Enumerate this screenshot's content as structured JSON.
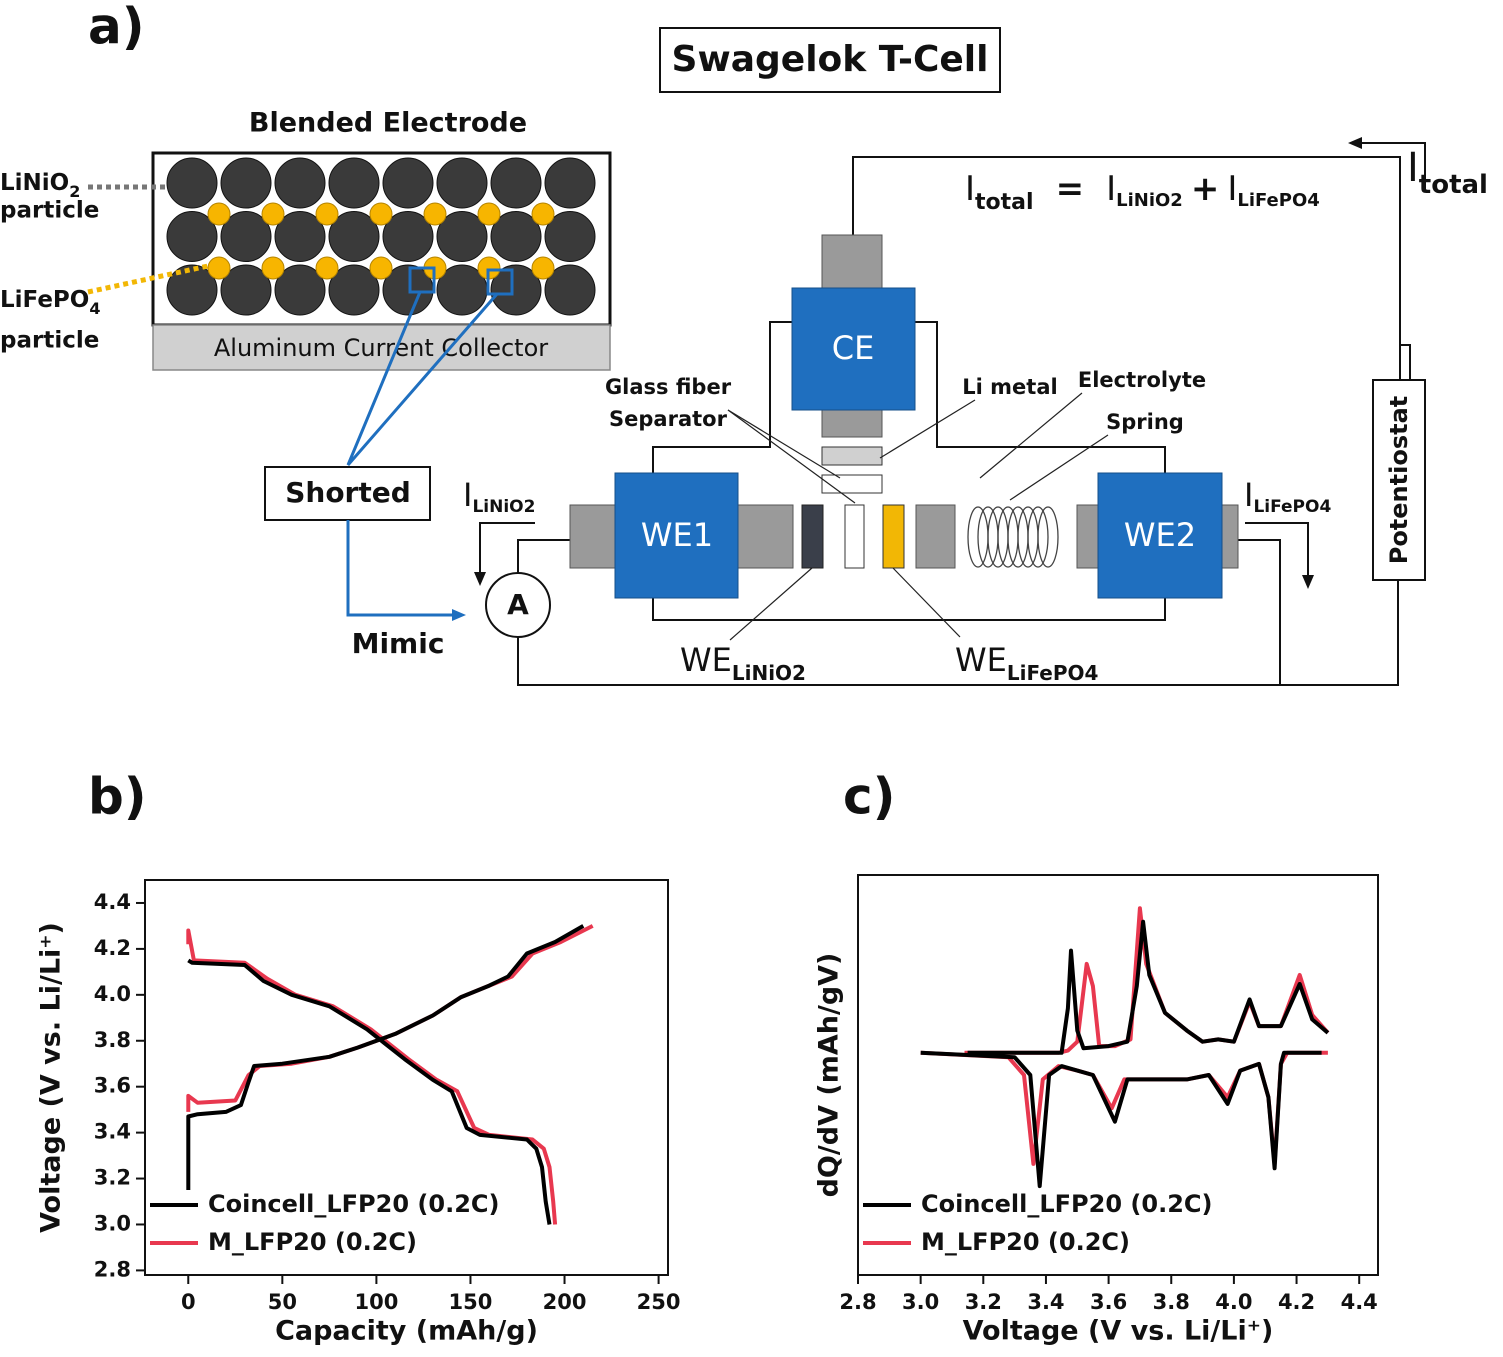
{
  "diagram": {
    "label": "a)",
    "title": "Swagelok T-Cell",
    "electrode_title": "Blended Electrode",
    "collector": "Aluminum Current Collector",
    "particle_1": {
      "name": "LiNiO",
      "sub": "2",
      "suffix": "particle"
    },
    "particle_2": {
      "name": "LiFePO",
      "sub": "4",
      "suffix": "particle"
    },
    "shorted": "Shorted",
    "mimic": "Mimic",
    "ammeter": "A",
    "ce": "CE",
    "we1": "WE1",
    "we2": "WE2",
    "potentiostat": "Potentiostat",
    "glass_fiber": [
      "Glass fiber",
      "Separator"
    ],
    "li_metal": "Li metal",
    "electrolyte": "Electrolyte",
    "spring": "Spring",
    "we_linio2": {
      "main": "WE",
      "sub": "LiNiO2"
    },
    "we_lifepo4": {
      "main": "WE",
      "sub": "LiFePO4"
    },
    "i_linio2": {
      "main": "I",
      "sub": "LiNiO2"
    },
    "i_lifepo4": {
      "main": "I",
      "sub": "LiFePO4"
    },
    "i_total": {
      "main": "I",
      "sub": "total"
    },
    "equation": {
      "lhs": {
        "main": "I",
        "sub": "total"
      },
      "eq": "=",
      "term1": {
        "main": "I",
        "sub": "LiNiO2"
      },
      "plus": "+",
      "term2": {
        "main": "I",
        "sub": "LiFePO4"
      }
    }
  },
  "chart_data": [
    {
      "type": "line",
      "label": "b)",
      "xlabel": "Capacity (mAh/g)",
      "ylabel": "Voltage (V vs. Li/Li⁺)",
      "xlim": [
        -23,
        255
      ],
      "ylim": [
        2.78,
        4.5
      ],
      "xticks": [
        0,
        50,
        100,
        150,
        200,
        250
      ],
      "yticks": [
        2.8,
        {
          "value": 3,
          "label": "3.0"
        },
        3.2,
        3.4,
        3.6,
        3.8,
        {
          "value": 4,
          "label": "4.0"
        },
        4.2,
        4.4
      ],
      "legend": "lower left",
      "series": [
        {
          "name": "M_LFP20 (0.2C)",
          "color": "#e8384f",
          "x": [
            0,
            0,
            5,
            25,
            32,
            38,
            55,
            75,
            90,
            110,
            130,
            145,
            160,
            172,
            183,
            198,
            215,
            null,
            0,
            0,
            3,
            30,
            42,
            57,
            77,
            97,
            117,
            132,
            143,
            152,
            160,
            183,
            189,
            192,
            194,
            195
          ],
          "values": [
            3.49,
            3.56,
            3.53,
            3.54,
            3.65,
            3.69,
            3.7,
            3.73,
            3.77,
            3.83,
            3.91,
            3.99,
            4.04,
            4.08,
            4.18,
            4.23,
            4.3,
            null,
            4.22,
            4.28,
            4.15,
            4.14,
            4.07,
            4.0,
            3.95,
            3.85,
            3.72,
            3.63,
            3.58,
            3.42,
            3.39,
            3.37,
            3.33,
            3.25,
            3.1,
            3.0
          ]
        },
        {
          "name": "Coincell_LFP20 (0.2C)",
          "color": "#000000",
          "x": [
            0,
            0,
            5,
            20,
            28,
            32,
            35,
            50,
            75,
            90,
            110,
            130,
            145,
            160,
            170,
            180,
            195,
            210,
            null,
            0,
            2,
            30,
            40,
            55,
            75,
            95,
            115,
            130,
            140,
            148,
            155,
            180,
            185,
            188,
            190,
            192
          ],
          "values": [
            3.15,
            3.47,
            3.48,
            3.49,
            3.52,
            3.62,
            3.69,
            3.7,
            3.73,
            3.77,
            3.83,
            3.91,
            3.99,
            4.04,
            4.08,
            4.18,
            4.23,
            4.3,
            null,
            4.15,
            4.14,
            4.13,
            4.06,
            4.0,
            3.95,
            3.85,
            3.72,
            3.63,
            3.58,
            3.42,
            3.39,
            3.37,
            3.33,
            3.25,
            3.1,
            3.0
          ]
        }
      ]
    },
    {
      "type": "line",
      "label": "c)",
      "xlabel": "Voltage (V vs. Li/Li⁺)",
      "ylabel": "dQ/dV (mAh/gV)",
      "xlim": [
        2.8,
        4.46
      ],
      "ylim": [
        -1.0,
        0.8
      ],
      "xticks": [
        2.8,
        {
          "value": 3,
          "label": "3.0"
        },
        3.2,
        3.4,
        3.6,
        3.8,
        {
          "value": 4,
          "label": "4.0"
        },
        4.2,
        4.4
      ],
      "legend": "lower left",
      "series": [
        {
          "name": "M_LFP20 (0.2C)",
          "color": "#e8384f",
          "x": [
            3.14,
            3.44,
            3.47,
            3.5,
            3.53,
            3.55,
            3.57,
            3.62,
            3.67,
            3.7,
            3.72,
            3.78,
            3.85,
            3.9,
            3.95,
            4.0,
            4.05,
            4.08,
            4.15,
            4.21,
            4.25,
            4.3,
            null,
            3.0,
            3.28,
            3.33,
            3.36,
            3.39,
            3.44,
            3.5,
            3.55,
            3.61,
            3.65,
            3.75,
            3.85,
            3.92,
            3.98,
            4.02,
            4.08,
            4.11,
            4.13,
            4.15,
            4.17,
            4.3
          ],
          "values": [
            0,
            0,
            0.01,
            0.05,
            0.4,
            0.3,
            0.03,
            0.03,
            0.06,
            0.65,
            0.4,
            0.18,
            0.1,
            0.05,
            0.06,
            0.05,
            0.23,
            0.12,
            0.12,
            0.35,
            0.17,
            0.09,
            null,
            0,
            -0.02,
            -0.1,
            -0.5,
            -0.12,
            -0.06,
            -0.08,
            -0.1,
            -0.25,
            -0.12,
            -0.12,
            -0.12,
            -0.1,
            -0.2,
            -0.08,
            -0.05,
            -0.2,
            -0.5,
            -0.05,
            0,
            0
          ]
        },
        {
          "name": "Coincell_LFP20 (0.2C)",
          "color": "#000000",
          "x": [
            3.15,
            3.45,
            3.47,
            3.48,
            3.5,
            3.52,
            3.6,
            3.66,
            3.69,
            3.71,
            3.73,
            3.78,
            3.85,
            3.9,
            3.95,
            4.0,
            4.05,
            4.08,
            4.15,
            4.21,
            4.25,
            4.3,
            null,
            3.0,
            3.3,
            3.35,
            3.38,
            3.41,
            3.45,
            3.5,
            3.55,
            3.62,
            3.66,
            3.75,
            3.85,
            3.92,
            3.98,
            4.02,
            4.08,
            4.11,
            4.13,
            4.15,
            4.16,
            4.28
          ],
          "values": [
            0,
            0,
            0.2,
            0.46,
            0.1,
            0.02,
            0.03,
            0.05,
            0.3,
            0.59,
            0.35,
            0.18,
            0.1,
            0.05,
            0.06,
            0.05,
            0.24,
            0.12,
            0.12,
            0.31,
            0.15,
            0.09,
            null,
            0,
            -0.02,
            -0.1,
            -0.6,
            -0.1,
            -0.06,
            -0.08,
            -0.1,
            -0.31,
            -0.12,
            -0.12,
            -0.12,
            -0.1,
            -0.23,
            -0.08,
            -0.05,
            -0.2,
            -0.52,
            -0.05,
            0,
            0
          ]
        }
      ]
    }
  ]
}
